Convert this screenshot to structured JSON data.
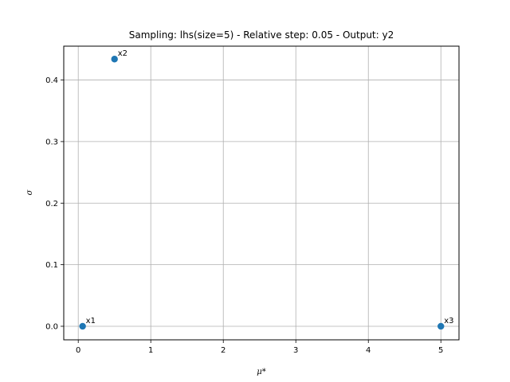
{
  "chart_data": {
    "type": "scatter",
    "title": "Sampling: lhs(size=5) - Relative step: 0.05 - Output: y2",
    "xlabel": "μ*",
    "ylabel": "σ",
    "xlim": [
      -0.2,
      5.25
    ],
    "ylim": [
      -0.022,
      0.455
    ],
    "xticks": [
      0,
      1,
      2,
      3,
      4,
      5
    ],
    "yticks": [
      0.0,
      0.1,
      0.2,
      0.3,
      0.4
    ],
    "xtick_labels": [
      "0",
      "1",
      "2",
      "3",
      "4",
      "5"
    ],
    "ytick_labels": [
      "0.0",
      "0.1",
      "0.2",
      "0.3",
      "0.4"
    ],
    "grid": true,
    "marker_color": "#1f77b4",
    "points": [
      {
        "label": "x1",
        "x": 0.06,
        "y": 0.0
      },
      {
        "label": "x2",
        "x": 0.5,
        "y": 0.434
      },
      {
        "label": "x3",
        "x": 5.0,
        "y": 0.0
      }
    ]
  }
}
